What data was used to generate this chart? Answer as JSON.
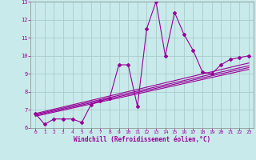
{
  "title": "",
  "xlabel": "Windchill (Refroidissement éolien,°C)",
  "bg_color": "#c8eaea",
  "line_color": "#990099",
  "grid_color": "#aacccc",
  "xlim": [
    -0.5,
    23.5
  ],
  "ylim": [
    6,
    13
  ],
  "xticks": [
    0,
    1,
    2,
    3,
    4,
    5,
    6,
    7,
    8,
    9,
    10,
    11,
    12,
    13,
    14,
    15,
    16,
    17,
    18,
    19,
    20,
    21,
    22,
    23
  ],
  "yticks": [
    6,
    7,
    8,
    9,
    10,
    11,
    12,
    13
  ],
  "volatile_x": [
    0,
    1,
    2,
    3,
    4,
    5,
    6,
    7,
    8,
    9,
    10,
    11,
    12,
    13,
    14,
    15,
    16,
    17,
    18,
    19,
    20,
    21,
    22,
    23
  ],
  "volatile_y": [
    6.8,
    6.2,
    6.5,
    6.5,
    6.5,
    6.3,
    7.3,
    7.5,
    7.65,
    9.5,
    9.5,
    7.2,
    11.5,
    13.0,
    10.0,
    12.4,
    11.2,
    10.3,
    9.1,
    9.0,
    9.5,
    9.8,
    9.9,
    10.0
  ],
  "bundle_lines": [
    {
      "x": [
        0,
        23
      ],
      "y": [
        6.8,
        9.6
      ]
    },
    {
      "x": [
        0,
        23
      ],
      "y": [
        6.75,
        9.45
      ]
    },
    {
      "x": [
        0,
        23
      ],
      "y": [
        6.7,
        9.35
      ]
    },
    {
      "x": [
        0,
        23
      ],
      "y": [
        6.65,
        9.25
      ]
    }
  ]
}
